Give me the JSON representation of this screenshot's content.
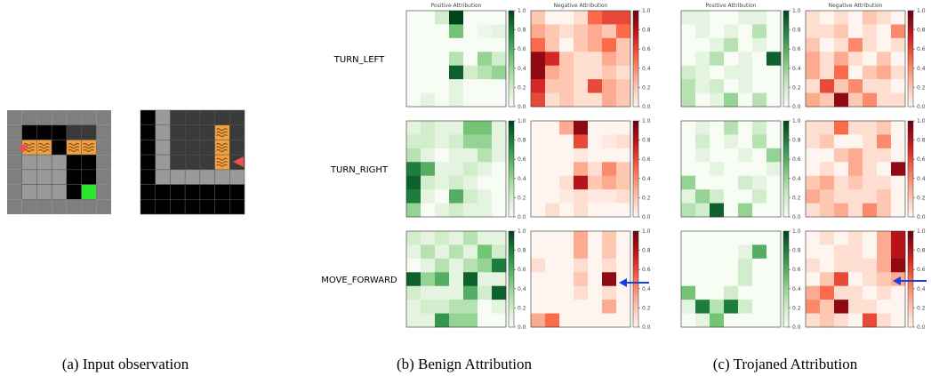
{
  "input_caption": "(a) Input observation",
  "actions": [
    "TURN_LEFT",
    "TURN_RIGHT",
    "MOVE_FORWARD"
  ],
  "column_titles": [
    "Positive Attribution",
    "Negative Attribution"
  ],
  "colorbar_lim": [
    0,
    1
  ],
  "colorbar_ticks": [
    {
      "value": 0,
      "label": "0.0"
    },
    {
      "value": 0.2,
      "label": "0.2"
    },
    {
      "value": 0.4,
      "label": "0.4"
    },
    {
      "value": 0.6,
      "label": "0.6"
    },
    {
      "value": 0.8,
      "label": "0.8"
    },
    {
      "value": 1,
      "label": "1.0"
    }
  ],
  "panels": [
    {
      "caption": "(b) Benign Attribution",
      "maps": [
        [
          [
            [
              0,
              0,
              0.2,
              1,
              0,
              0,
              0
            ],
            [
              0,
              0,
              0,
              0.5,
              0,
              0.05,
              0.1
            ],
            [
              0,
              0,
              0,
              0,
              0,
              0,
              0
            ],
            [
              0,
              0,
              0,
              0.3,
              0,
              0.4,
              0.2
            ],
            [
              0,
              0,
              0,
              0.9,
              0.2,
              0.3,
              0.4
            ],
            [
              0,
              0,
              0,
              0.1,
              0,
              0,
              0
            ],
            [
              0,
              0.1,
              0,
              0.1,
              0,
              0,
              0
            ]
          ],
          [
            [
              0.2,
              0,
              0,
              0.1,
              0.5,
              0.6,
              0.6
            ],
            [
              0.3,
              0.2,
              0.1,
              0.2,
              0.3,
              0.2,
              0.5
            ],
            [
              0.5,
              0.2,
              0,
              0.2,
              0.3,
              0.5,
              0.2
            ],
            [
              0.9,
              0.7,
              0.2,
              0.1,
              0.1,
              0.3,
              0.2
            ],
            [
              0.9,
              0.3,
              0.2,
              0.1,
              0.1,
              0.2,
              0.1
            ],
            [
              0.7,
              0.2,
              0.2,
              0.1,
              0.6,
              0.3,
              0.2
            ],
            [
              0.6,
              0.1,
              0.2,
              0.1,
              0.1,
              0.3,
              0.2
            ]
          ]
        ],
        [
          [
            [
              0.1,
              0.2,
              0.1,
              0.1,
              0.5,
              0.5,
              0.1
            ],
            [
              0.2,
              0.2,
              0.1,
              0.2,
              0.4,
              0.4,
              0.1
            ],
            [
              0.3,
              0.1,
              0,
              0.1,
              0.1,
              0.3,
              0.1
            ],
            [
              0.8,
              0.6,
              0.1,
              0.1,
              0.2,
              0.1,
              0
            ],
            [
              0.9,
              0.2,
              0.1,
              0.2,
              0.1,
              0,
              0
            ],
            [
              0.8,
              0.1,
              0,
              0.6,
              0.2,
              0.1,
              0
            ],
            [
              0.4,
              0,
              0.1,
              0.2,
              0.1,
              0.1,
              0
            ]
          ],
          [
            [
              0,
              0,
              0.3,
              0.9,
              0,
              0,
              0
            ],
            [
              0,
              0,
              0,
              0.6,
              0,
              0.05,
              0.1
            ],
            [
              0,
              0,
              0,
              0.05,
              0,
              0,
              0
            ],
            [
              0,
              0,
              0,
              0.3,
              0.1,
              0.4,
              0.2
            ],
            [
              0,
              0,
              0.1,
              0.8,
              0.2,
              0.3,
              0.2
            ],
            [
              0,
              0,
              0.05,
              0.1,
              0.05,
              0.05,
              0.1
            ],
            [
              0,
              0.1,
              0,
              0.1,
              0,
              0,
              0
            ]
          ]
        ],
        [
          [
            [
              0.2,
              0.1,
              0.2,
              0.1,
              0.3,
              0.1,
              0.1
            ],
            [
              0.1,
              0.3,
              0.1,
              0.3,
              0.1,
              0.5,
              0.2
            ],
            [
              0,
              0.1,
              0.3,
              0.1,
              0.3,
              0.4,
              0.8
            ],
            [
              0.9,
              0.4,
              0.6,
              0.1,
              0.9,
              0.1,
              0.1
            ],
            [
              0.2,
              0.1,
              0.1,
              0.1,
              0.6,
              0.2,
              0.9
            ],
            [
              0.1,
              0.2,
              0.2,
              0.3,
              0.3,
              0,
              0.1
            ],
            [
              0.1,
              0.1,
              0.7,
              0.4,
              0.4,
              0,
              0
            ]
          ],
          [
            [
              0,
              0,
              0,
              0.3,
              0,
              0.2,
              0
            ],
            [
              0,
              0,
              0,
              0.3,
              0,
              0.2,
              0
            ],
            [
              0.1,
              0,
              0,
              0.1,
              0,
              0.1,
              0
            ],
            [
              0,
              0,
              0,
              0.2,
              0,
              0.9,
              0
            ],
            [
              0,
              0,
              0,
              0.1,
              0,
              0.1,
              0
            ],
            [
              0,
              0,
              0,
              0,
              0,
              0.3,
              0
            ],
            [
              0.3,
              0.5,
              0,
              0,
              0,
              0,
              0
            ]
          ]
        ]
      ]
    },
    {
      "caption": "(c) Trojaned Attribution",
      "maps": [
        [
          [
            [
              0.1,
              0.1,
              0,
              0,
              0.1,
              0.1,
              0
            ],
            [
              0,
              0.1,
              0,
              0.1,
              0,
              0.3,
              0
            ],
            [
              0,
              0,
              0.1,
              0.3,
              0,
              0.1,
              0
            ],
            [
              0,
              0.1,
              0.3,
              0,
              0.1,
              0,
              0.9
            ],
            [
              0.2,
              0.1,
              0,
              0.1,
              0.1,
              0,
              0
            ],
            [
              0.3,
              0.1,
              0.2,
              0,
              0.1,
              0,
              0
            ],
            [
              0.3,
              0,
              0.1,
              0.4,
              0,
              0.3,
              0
            ]
          ],
          [
            [
              0.1,
              0,
              0.1,
              0,
              0.2,
              0.1,
              0
            ],
            [
              0.1,
              0.1,
              0.2,
              0,
              0.1,
              0,
              0.4
            ],
            [
              0.2,
              0,
              0.1,
              0.4,
              0.1,
              0,
              0.1
            ],
            [
              0.3,
              0.1,
              0.3,
              0.1,
              0,
              0.2,
              0
            ],
            [
              0.3,
              0.1,
              0.5,
              0,
              0.2,
              0.3,
              0.1
            ],
            [
              0.1,
              0.6,
              0.2,
              0.4,
              0.1,
              0.1,
              0
            ],
            [
              0.3,
              0.2,
              0.9,
              0.2,
              0.4,
              0.1,
              0.1
            ]
          ]
        ],
        [
          [
            [
              0,
              0.1,
              0,
              0.3,
              0,
              0.2,
              0
            ],
            [
              0,
              0.2,
              0,
              0.1,
              0,
              0.3,
              0
            ],
            [
              0,
              0.1,
              0,
              0,
              0.1,
              0,
              0.4
            ],
            [
              0,
              0,
              0.1,
              0,
              0,
              0,
              0.1
            ],
            [
              0.4,
              0,
              0,
              0,
              0.2,
              0.1,
              0
            ],
            [
              0.1,
              0.4,
              0.2,
              0,
              0,
              0.2,
              0
            ],
            [
              0.3,
              0.2,
              0.9,
              0,
              0.4,
              0,
              0
            ]
          ],
          [
            [
              0.1,
              0.1,
              0.5,
              0.1,
              0.1,
              0.2,
              0
            ],
            [
              0.1,
              0.2,
              0,
              0,
              0.1,
              0.4,
              0
            ],
            [
              0,
              0,
              0.2,
              0.3,
              0.1,
              0.1,
              0
            ],
            [
              0,
              0.1,
              0,
              0.3,
              0.1,
              0,
              0.9
            ],
            [
              0.2,
              0.3,
              0.1,
              0.2,
              0.1,
              0.1,
              0
            ],
            [
              0.3,
              0.2,
              0.1,
              0.1,
              0.1,
              0.2,
              0
            ],
            [
              0.1,
              0.2,
              0.3,
              0.1,
              0.4,
              0.2,
              0
            ]
          ]
        ],
        [
          [
            [
              0,
              0,
              0,
              0,
              0,
              0,
              0
            ],
            [
              0,
              0,
              0,
              0,
              0.1,
              0.6,
              0
            ],
            [
              0,
              0,
              0,
              0,
              0.2,
              0,
              0
            ],
            [
              0,
              0,
              0,
              0,
              0.2,
              0,
              0
            ],
            [
              0.5,
              0,
              0,
              0.2,
              0,
              0,
              0
            ],
            [
              0.1,
              0.8,
              0.3,
              0.8,
              0.2,
              0,
              0
            ],
            [
              0,
              0.1,
              0.5,
              0,
              0,
              0,
              0
            ]
          ],
          [
            [
              0,
              0.1,
              0,
              0.1,
              0,
              0.3,
              0.8
            ],
            [
              0,
              0,
              0.1,
              0.1,
              0,
              0.3,
              0.8
            ],
            [
              0.1,
              0,
              0.1,
              0.1,
              0.1,
              0.3,
              0.9
            ],
            [
              0,
              0.2,
              0.6,
              0,
              0.1,
              0.2,
              0.3
            ],
            [
              0.3,
              0.5,
              0.1,
              0.1,
              0,
              0.1,
              0
            ],
            [
              0.4,
              0.2,
              0.9,
              0.1,
              0.1,
              0,
              0
            ],
            [
              0.1,
              0.2,
              0.1,
              0,
              0.6,
              0.1,
              0
            ]
          ]
        ]
      ]
    }
  ]
}
